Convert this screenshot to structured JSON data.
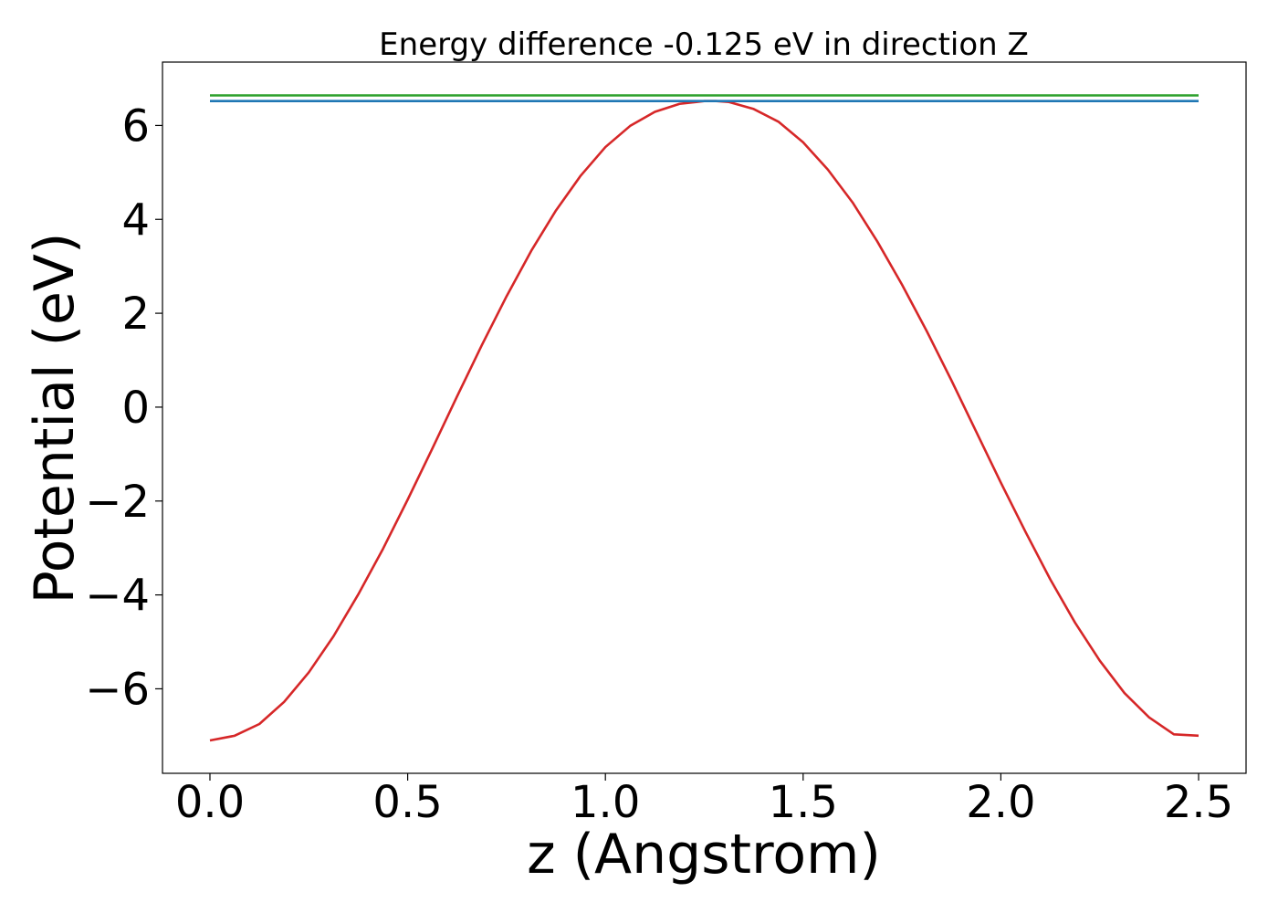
{
  "chart_data": {
    "type": "line",
    "title": "Energy difference -0.125 eV in direction Z",
    "xlabel": "z (Angstrom)",
    "ylabel": "Potential (eV)",
    "xlim": [
      -0.12,
      2.62
    ],
    "ylim": [
      -7.8,
      7.35
    ],
    "grid": false,
    "x_ticks": [
      {
        "value": 0.0,
        "label": "0.0"
      },
      {
        "value": 0.5,
        "label": "0.5"
      },
      {
        "value": 1.0,
        "label": "1.0"
      },
      {
        "value": 1.5,
        "label": "1.5"
      },
      {
        "value": 2.0,
        "label": "2.0"
      },
      {
        "value": 2.5,
        "label": "2.5"
      }
    ],
    "y_ticks": [
      {
        "value": -6,
        "label": "−6"
      },
      {
        "value": -4,
        "label": "−4"
      },
      {
        "value": -2,
        "label": "−2"
      },
      {
        "value": 0,
        "label": "0"
      },
      {
        "value": 2,
        "label": "2"
      },
      {
        "value": 4,
        "label": "4"
      },
      {
        "value": 6,
        "label": "6"
      }
    ],
    "series": [
      {
        "color": "#d62728",
        "x": [
          0.0,
          0.0625,
          0.125,
          0.1875,
          0.25,
          0.3125,
          0.375,
          0.4375,
          0.5,
          0.5625,
          0.625,
          0.6875,
          0.75,
          0.8125,
          0.875,
          0.9375,
          1.0,
          1.0625,
          1.125,
          1.1875,
          1.25,
          1.28,
          1.3125,
          1.375,
          1.4375,
          1.5,
          1.5625,
          1.625,
          1.6875,
          1.75,
          1.8125,
          1.875,
          1.9375,
          2.0,
          2.0625,
          2.125,
          2.1875,
          2.25,
          2.3125,
          2.375,
          2.4375,
          2.5
        ],
        "y": [
          -7.1,
          -7.0,
          -6.75,
          -6.28,
          -5.65,
          -4.88,
          -3.99,
          -3.02,
          -1.97,
          -0.88,
          0.23,
          1.32,
          2.36,
          3.33,
          4.19,
          4.93,
          5.54,
          5.99,
          6.29,
          6.46,
          6.52,
          6.52,
          6.5,
          6.35,
          6.08,
          5.64,
          5.06,
          4.36,
          3.53,
          2.61,
          1.62,
          0.57,
          -0.52,
          -1.61,
          -2.66,
          -3.67,
          -4.59,
          -5.4,
          -6.09,
          -6.61,
          -6.97,
          -7.0
        ]
      },
      {
        "color": "#2ca02c",
        "x": [
          0.0,
          2.5
        ],
        "y": [
          6.64,
          6.64
        ]
      },
      {
        "color": "#1f77b4",
        "x": [
          0.0,
          2.5
        ],
        "y": [
          6.52,
          6.52
        ]
      }
    ]
  },
  "colors": {
    "axes": "#000000",
    "background": "#ffffff"
  }
}
